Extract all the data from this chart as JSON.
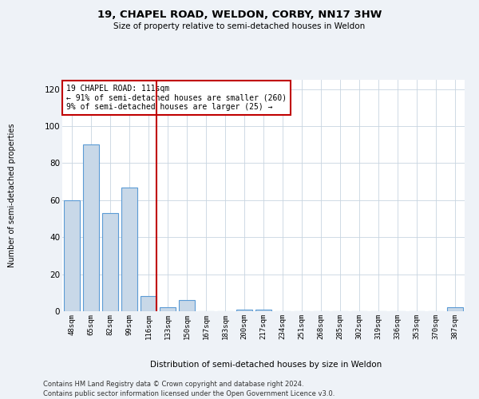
{
  "title1": "19, CHAPEL ROAD, WELDON, CORBY, NN17 3HW",
  "title2": "Size of property relative to semi-detached houses in Weldon",
  "xlabel": "Distribution of semi-detached houses by size in Weldon",
  "ylabel": "Number of semi-detached properties",
  "categories": [
    "48sqm",
    "65sqm",
    "82sqm",
    "99sqm",
    "116sqm",
    "133sqm",
    "150sqm",
    "167sqm",
    "183sqm",
    "200sqm",
    "217sqm",
    "234sqm",
    "251sqm",
    "268sqm",
    "285sqm",
    "302sqm",
    "319sqm",
    "336sqm",
    "353sqm",
    "370sqm",
    "387sqm"
  ],
  "values": [
    60,
    90,
    53,
    67,
    8,
    2,
    6,
    0,
    0,
    1,
    1,
    0,
    0,
    0,
    0,
    0,
    0,
    0,
    0,
    0,
    2
  ],
  "bar_color": "#c8d8e8",
  "bar_edge_color": "#5b9bd5",
  "highlight_index": 4,
  "highlight_color": "#c00000",
  "annotation_title": "19 CHAPEL ROAD: 111sqm",
  "annotation_line1": "← 91% of semi-detached houses are smaller (260)",
  "annotation_line2": "9% of semi-detached houses are larger (25) →",
  "ylim": [
    0,
    125
  ],
  "yticks": [
    0,
    20,
    40,
    60,
    80,
    100,
    120
  ],
  "footer1": "Contains HM Land Registry data © Crown copyright and database right 2024.",
  "footer2": "Contains public sector information licensed under the Open Government Licence v3.0.",
  "bg_color": "#eef2f7",
  "plot_bg_color": "#ffffff",
  "grid_color": "#c8d4e0"
}
